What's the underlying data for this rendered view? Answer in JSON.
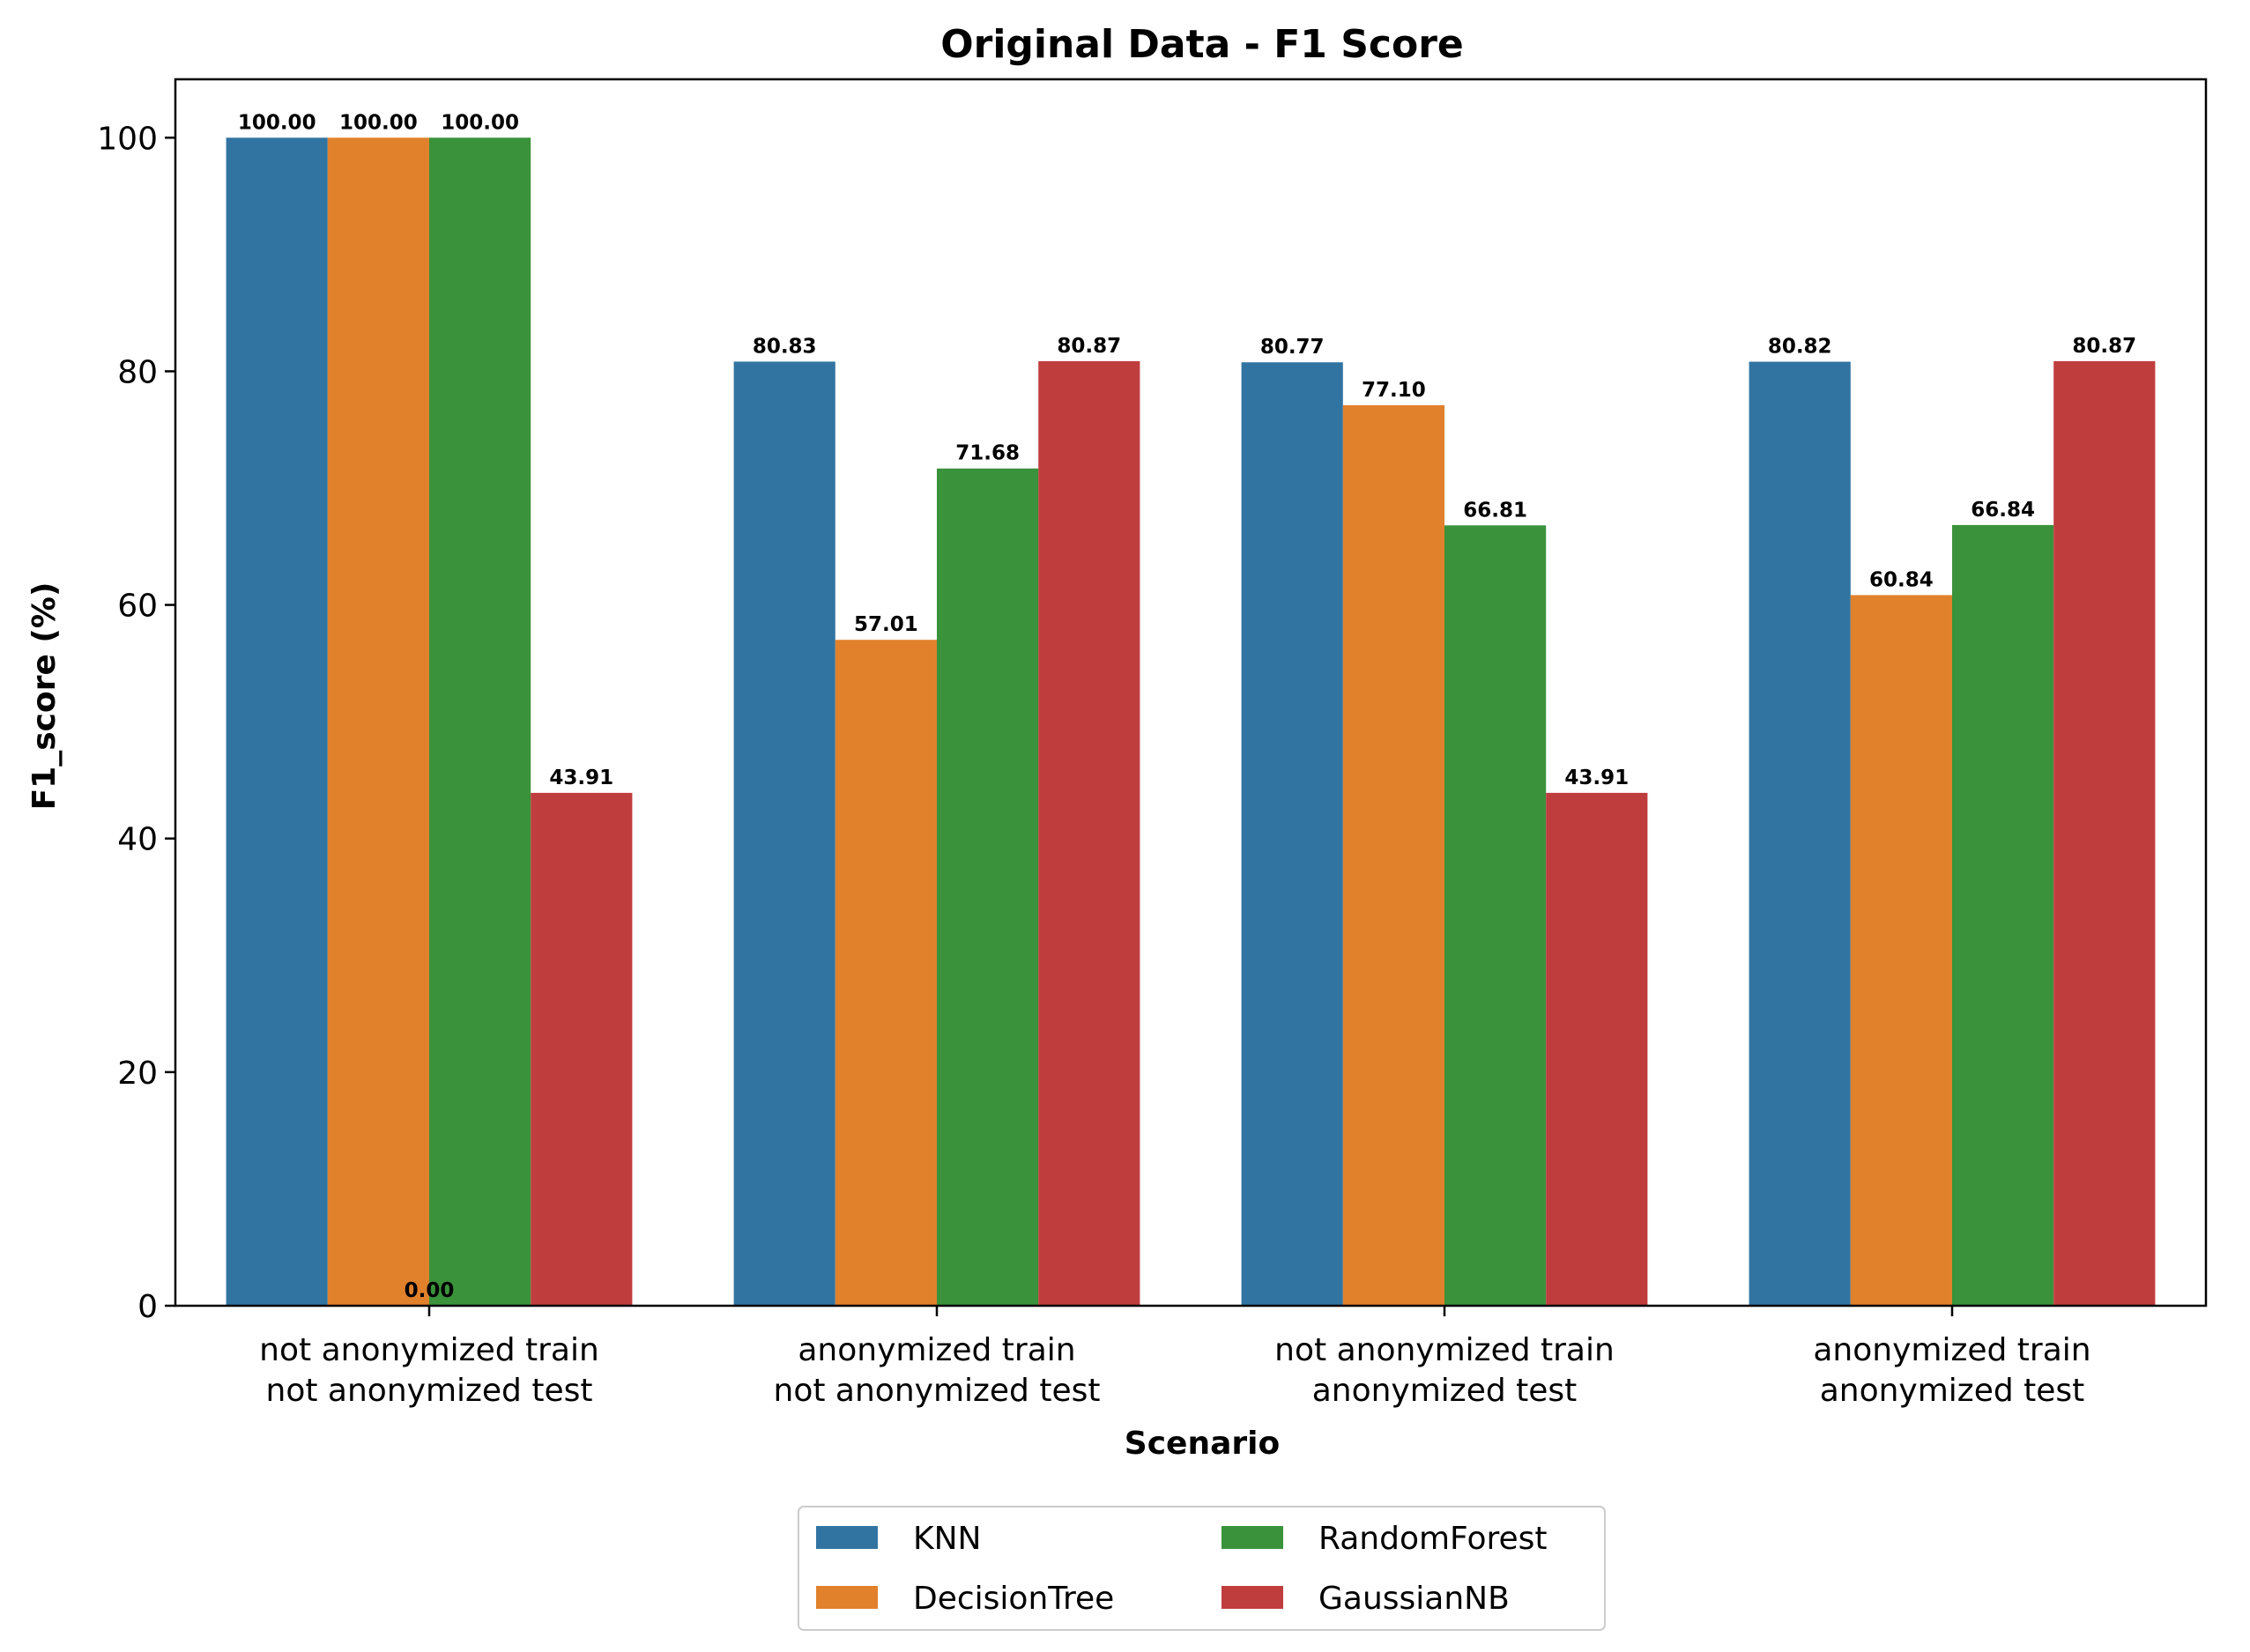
{
  "chart_data": {
    "type": "bar",
    "title": "Original Data - F1 Score",
    "xlabel": "Scenario",
    "ylabel": "F1_score (%)",
    "ylim": [
      0,
      105
    ],
    "yticks": [
      0,
      20,
      40,
      60,
      80,
      100
    ],
    "categories": [
      [
        "not anonymized train",
        "not anonymized test"
      ],
      [
        "anonymized train",
        "not anonymized test"
      ],
      [
        "not anonymized train",
        "anonymized test"
      ],
      [
        "anonymized train",
        "anonymized test"
      ]
    ],
    "series": [
      {
        "name": "KNN",
        "color": "#3274a1",
        "values": [
          100.0,
          80.83,
          80.77,
          80.82
        ],
        "labels": [
          "100.00",
          "80.83",
          "80.77",
          "80.82"
        ]
      },
      {
        "name": "DecisionTree",
        "color": "#e1812c",
        "values": [
          100.0,
          57.01,
          77.1,
          60.84
        ],
        "labels": [
          "100.00",
          "57.01",
          "77.10",
          "60.84"
        ]
      },
      {
        "name": "RandomForest",
        "color": "#3a923a",
        "values": [
          100.0,
          71.68,
          66.81,
          66.84
        ],
        "labels": [
          "100.00",
          "71.68",
          "66.81",
          "66.84"
        ]
      },
      {
        "name": "GaussianNB",
        "color": "#c03d3e",
        "values": [
          43.91,
          80.87,
          43.91,
          80.87
        ],
        "labels": [
          "43.91",
          "80.87",
          "43.91",
          "80.87"
        ]
      }
    ],
    "extra_labels": [
      {
        "text": "0.00",
        "category": 0,
        "value": 0
      }
    ],
    "legend": {
      "placement": "bottom-center",
      "columns": 2
    },
    "grid": false
  }
}
